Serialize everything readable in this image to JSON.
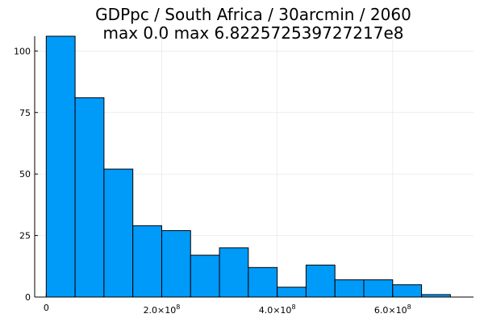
{
  "chart_data": {
    "type": "bar",
    "title_line1": "GDPpc / South Africa / 30arcmin / 2060",
    "title_line2": "max 0.0  max 6.822572539727217e8",
    "bin_width": 50000000,
    "bin_start": 0,
    "values": [
      106,
      81,
      52,
      29,
      27,
      17,
      20,
      12,
      4,
      13,
      7,
      7,
      5,
      1
    ],
    "xlim": [
      -20000000,
      740000000
    ],
    "ylim": [
      0,
      106
    ],
    "x_ticks": [
      {
        "value": 0,
        "label": "0",
        "mantissa": "",
        "exponent": ""
      },
      {
        "value": 200000000,
        "label": "",
        "mantissa": "2.0×10",
        "exponent": "8"
      },
      {
        "value": 400000000,
        "label": "",
        "mantissa": "4.0×10",
        "exponent": "8"
      },
      {
        "value": 600000000,
        "label": "",
        "mantissa": "6.0×10",
        "exponent": "8"
      }
    ],
    "y_ticks": [
      {
        "value": 0,
        "label": "0"
      },
      {
        "value": 25,
        "label": "25"
      },
      {
        "value": 50,
        "label": "50"
      },
      {
        "value": 75,
        "label": "75"
      },
      {
        "value": 100,
        "label": "100"
      }
    ],
    "grid": true,
    "legend": "none",
    "bar_color": "#009af9"
  }
}
